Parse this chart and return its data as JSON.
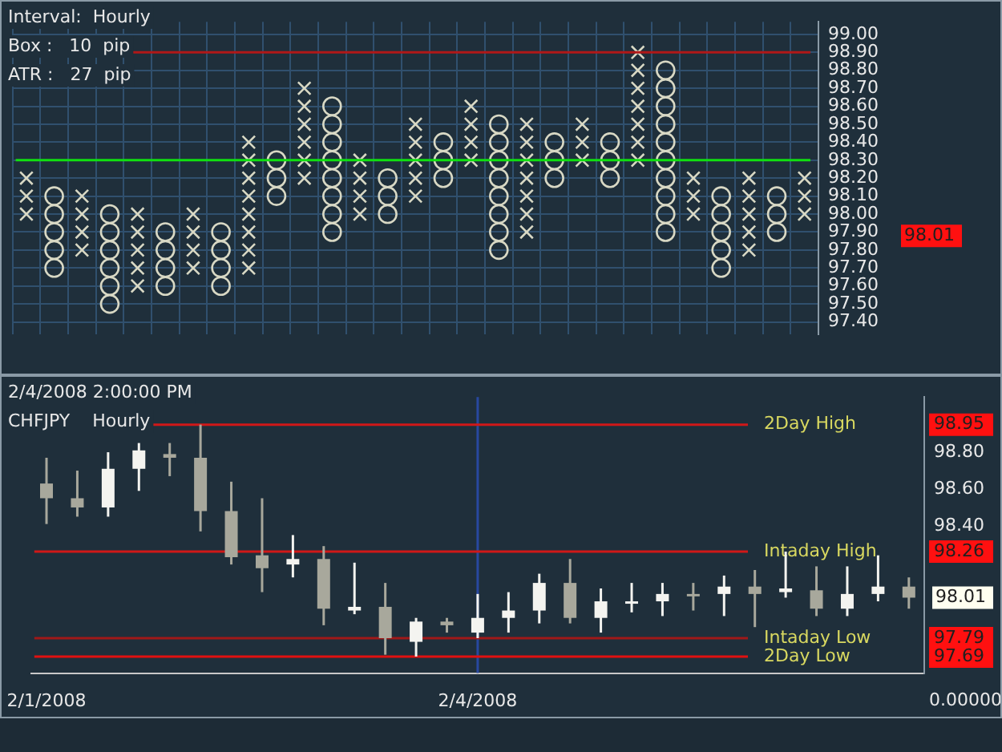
{
  "chart_data": [
    {
      "type": "scatter",
      "annotations": [
        "Interval:  Hourly",
        "Box :   10  pip",
        "ATR :   27  pip",
        {
          "text": "98.01"
        }
      ],
      "categories": [
        null,
        null,
        null,
        null,
        null,
        null,
        null,
        null,
        null,
        null,
        null,
        null,
        null,
        null,
        null,
        null,
        null,
        null,
        null,
        null,
        null,
        null,
        null,
        null,
        null,
        null,
        null,
        null,
        null
      ],
      "series": [
        {
          "type": "scatter",
          "marker": "cross",
          "color": "#d8d8c4",
          "values": [
            98.0,
            null,
            97.8,
            null,
            97.6,
            null,
            97.7,
            null,
            97.7,
            null,
            98.2,
            null,
            98.0,
            null,
            98.1,
            null,
            98.3,
            null,
            97.9,
            null,
            98.3,
            null,
            98.3,
            null,
            98.0,
            null,
            97.8,
            null,
            98.0
          ]
        },
        {
          "type": "scatter",
          "marker": "cross",
          "color": "#d8d8c4",
          "values": [
            98.1,
            null,
            97.9,
            null,
            97.7,
            null,
            97.8,
            null,
            97.8,
            null,
            98.3,
            null,
            98.1,
            null,
            98.2,
            null,
            98.4,
            null,
            98.0,
            null,
            98.4,
            null,
            98.4,
            null,
            98.1,
            null,
            97.9,
            null,
            98.1
          ]
        },
        {
          "type": "scatter",
          "marker": "cross",
          "color": "#d8d8c4",
          "values": [
            98.2,
            null,
            98.0,
            null,
            97.8,
            null,
            97.9,
            null,
            97.9,
            null,
            98.4,
            null,
            98.2,
            null,
            98.3,
            null,
            98.5,
            null,
            98.1,
            null,
            98.5,
            null,
            98.5,
            null,
            98.2,
            null,
            98.0,
            null,
            98.2
          ]
        },
        {
          "type": "scatter",
          "marker": "cross",
          "color": "#d8d8c4",
          "values": [
            null,
            null,
            98.1,
            null,
            97.9,
            null,
            98.0,
            null,
            98.0,
            null,
            98.5,
            null,
            98.3,
            null,
            98.4,
            null,
            98.6,
            null,
            98.2,
            null,
            null,
            null,
            98.6,
            null,
            null,
            null,
            98.1,
            null,
            null
          ]
        },
        {
          "type": "scatter",
          "marker": "cross",
          "color": "#d8d8c4",
          "values": [
            null,
            null,
            null,
            null,
            98.0,
            null,
            null,
            null,
            98.1,
            null,
            98.6,
            null,
            null,
            null,
            98.5,
            null,
            null,
            null,
            98.3,
            null,
            null,
            null,
            98.7,
            null,
            null,
            null,
            98.2,
            null,
            null
          ]
        },
        {
          "type": "scatter",
          "marker": "cross",
          "color": "#d8d8c4",
          "values": [
            null,
            null,
            null,
            null,
            null,
            null,
            null,
            null,
            98.2,
            null,
            98.7,
            null,
            null,
            null,
            null,
            null,
            null,
            null,
            98.4,
            null,
            null,
            null,
            98.8,
            null,
            null,
            null,
            null,
            null,
            null
          ]
        },
        {
          "type": "scatter",
          "marker": "cross",
          "color": "#d8d8c4",
          "values": [
            null,
            null,
            null,
            null,
            null,
            null,
            null,
            null,
            98.3,
            null,
            null,
            null,
            null,
            null,
            null,
            null,
            null,
            null,
            98.5,
            null,
            null,
            null,
            98.9,
            null,
            null,
            null,
            null,
            null,
            null
          ]
        },
        {
          "type": "scatter",
          "marker": "cross",
          "color": "#d8d8c4",
          "values": [
            null,
            null,
            null,
            null,
            null,
            null,
            null,
            null,
            98.4,
            null,
            null,
            null,
            null,
            null,
            null,
            null,
            null,
            null,
            null,
            null,
            null,
            null,
            null,
            null,
            null,
            null,
            null,
            null,
            null
          ]
        },
        {
          "type": "scatter",
          "marker": "circle",
          "color": "#d8d8c4",
          "values": [
            null,
            97.7,
            null,
            97.5,
            null,
            97.6,
            null,
            97.6,
            null,
            98.1,
            null,
            97.9,
            null,
            98.0,
            null,
            98.2,
            null,
            97.8,
            null,
            98.2,
            null,
            98.2,
            null,
            97.9,
            null,
            97.7,
            null,
            97.9,
            null
          ]
        },
        {
          "type": "scatter",
          "marker": "circle",
          "color": "#d8d8c4",
          "values": [
            null,
            97.8,
            null,
            97.6,
            null,
            97.7,
            null,
            97.7,
            null,
            98.2,
            null,
            98.0,
            null,
            98.1,
            null,
            98.3,
            null,
            97.9,
            null,
            98.3,
            null,
            98.3,
            null,
            98.0,
            null,
            97.8,
            null,
            98.0,
            null
          ]
        },
        {
          "type": "scatter",
          "marker": "circle",
          "color": "#d8d8c4",
          "values": [
            null,
            97.9,
            null,
            97.7,
            null,
            97.8,
            null,
            97.8,
            null,
            98.3,
            null,
            98.1,
            null,
            98.2,
            null,
            98.4,
            null,
            98.0,
            null,
            98.4,
            null,
            98.4,
            null,
            98.1,
            null,
            97.9,
            null,
            98.1,
            null
          ]
        },
        {
          "type": "scatter",
          "marker": "circle",
          "color": "#d8d8c4",
          "values": [
            null,
            98.0,
            null,
            97.8,
            null,
            97.9,
            null,
            97.9,
            null,
            null,
            null,
            98.2,
            null,
            null,
            null,
            null,
            null,
            98.1,
            null,
            null,
            null,
            null,
            null,
            98.2,
            null,
            98.0,
            null,
            null,
            null
          ]
        },
        {
          "type": "scatter",
          "marker": "circle",
          "color": "#d8d8c4",
          "values": [
            null,
            98.1,
            null,
            97.9,
            null,
            null,
            null,
            null,
            null,
            null,
            null,
            98.3,
            null,
            null,
            null,
            null,
            null,
            98.2,
            null,
            null,
            null,
            null,
            null,
            98.3,
            null,
            98.1,
            null,
            null,
            null
          ]
        },
        {
          "type": "scatter",
          "marker": "circle",
          "color": "#d8d8c4",
          "values": [
            null,
            null,
            null,
            98.0,
            null,
            null,
            null,
            null,
            null,
            null,
            null,
            98.4,
            null,
            null,
            null,
            null,
            null,
            98.3,
            null,
            null,
            null,
            null,
            null,
            98.4,
            null,
            null,
            null,
            null,
            null
          ]
        },
        {
          "type": "scatter",
          "marker": "circle",
          "color": "#d8d8c4",
          "values": [
            null,
            null,
            null,
            null,
            null,
            null,
            null,
            null,
            null,
            null,
            null,
            98.5,
            null,
            null,
            null,
            null,
            null,
            98.4,
            null,
            null,
            null,
            null,
            null,
            98.5,
            null,
            null,
            null,
            null,
            null
          ]
        },
        {
          "type": "scatter",
          "marker": "circle",
          "color": "#d8d8c4",
          "values": [
            null,
            null,
            null,
            null,
            null,
            null,
            null,
            null,
            null,
            null,
            null,
            98.6,
            null,
            null,
            null,
            null,
            null,
            98.5,
            null,
            null,
            null,
            null,
            null,
            98.6,
            null,
            null,
            null,
            null,
            null
          ]
        },
        {
          "type": "scatter",
          "marker": "circle",
          "color": "#d8d8c4",
          "values": [
            null,
            null,
            null,
            null,
            null,
            null,
            null,
            null,
            null,
            null,
            null,
            null,
            null,
            null,
            null,
            null,
            null,
            null,
            null,
            null,
            null,
            null,
            null,
            98.7,
            null,
            null,
            null,
            null,
            null
          ]
        },
        {
          "type": "scatter",
          "marker": "circle",
          "color": "#d8d8c4",
          "values": [
            null,
            null,
            null,
            null,
            null,
            null,
            null,
            null,
            null,
            null,
            null,
            null,
            null,
            null,
            null,
            null,
            null,
            null,
            null,
            null,
            null,
            null,
            null,
            98.8,
            null,
            null,
            null,
            null,
            null
          ]
        }
      ],
      "ylim": [
        97.33,
        99.07
      ],
      "yticks": [
        {
          "value": 97.4,
          "label": "97.40"
        },
        {
          "value": 97.5,
          "label": "97.50"
        },
        {
          "value": 97.6,
          "label": "97.60"
        },
        {
          "value": 97.7,
          "label": "97.70"
        },
        {
          "value": 97.8,
          "label": "97.80"
        },
        {
          "value": 97.9,
          "label": "97.90"
        },
        {
          "value": 98.0,
          "label": "98.00"
        },
        {
          "value": 98.1,
          "label": "98.10"
        },
        {
          "value": 98.2,
          "label": "98.20"
        },
        {
          "value": 98.3,
          "label": "98.30"
        },
        {
          "value": 98.4,
          "label": "98.40"
        },
        {
          "value": 98.5,
          "label": "98.50"
        },
        {
          "value": 98.6,
          "label": "98.60"
        },
        {
          "value": 98.7,
          "label": "98.70"
        },
        {
          "value": 98.8,
          "label": "98.80"
        },
        {
          "value": 98.9,
          "label": "98.90"
        },
        {
          "value": 99.0,
          "label": "99.00"
        }
      ],
      "grid": true,
      "ref_lines": [
        {
          "axis": "y",
          "value": 98.9,
          "color": "#b01818"
        },
        {
          "axis": "y",
          "value": 98.3,
          "color": "#10e010"
        }
      ]
    },
    {
      "type": "candlestick",
      "annotations": [
        "2/4/2008 2:00:00 PM",
        "CHFJPY    Hourly",
        {
          "text": "98.01"
        },
        {
          "text": "0.00000"
        }
      ],
      "categories": [
        "2/1/2008",
        null,
        null,
        null,
        null,
        null,
        null,
        null,
        null,
        null,
        null,
        null,
        null,
        null,
        "2/4/2008",
        null,
        null,
        null,
        null,
        null,
        null,
        null,
        null,
        null,
        null,
        null,
        null,
        null,
        null
      ],
      "ohlc": [
        [
          98.63,
          98.77,
          98.41,
          98.55
        ],
        [
          98.55,
          98.7,
          98.45,
          98.5
        ],
        [
          98.5,
          98.8,
          98.45,
          98.71
        ],
        [
          98.71,
          98.85,
          98.59,
          98.81
        ],
        [
          98.79,
          98.85,
          98.67,
          98.77
        ],
        [
          98.77,
          98.95,
          98.37,
          98.48
        ],
        [
          98.48,
          98.64,
          98.19,
          98.23
        ],
        [
          98.24,
          98.55,
          98.04,
          98.17
        ],
        [
          98.19,
          98.35,
          98.12,
          98.22
        ],
        [
          98.22,
          98.29,
          97.86,
          97.95
        ],
        [
          97.94,
          98.2,
          97.92,
          97.96
        ],
        [
          97.96,
          98.09,
          97.7,
          97.79
        ],
        [
          97.77,
          97.9,
          97.69,
          97.88
        ],
        [
          97.88,
          97.9,
          97.82,
          97.86
        ],
        [
          97.82,
          98.03,
          97.79,
          97.9
        ],
        [
          97.9,
          98.04,
          97.82,
          97.94
        ],
        [
          97.94,
          98.14,
          97.87,
          98.09
        ],
        [
          98.09,
          98.22,
          97.87,
          97.9
        ],
        [
          97.9,
          98.06,
          97.82,
          97.99
        ],
        [
          97.99,
          98.09,
          97.93,
          97.99
        ],
        [
          97.99,
          98.09,
          97.91,
          98.03
        ],
        [
          98.03,
          98.09,
          97.94,
          98.02
        ],
        [
          98.03,
          98.13,
          97.91,
          98.07
        ],
        [
          98.07,
          98.16,
          97.85,
          98.03
        ],
        [
          98.04,
          98.26,
          98.01,
          98.06
        ],
        [
          98.05,
          98.18,
          97.91,
          97.95
        ],
        [
          97.95,
          98.18,
          97.91,
          98.03
        ],
        [
          98.03,
          98.24,
          97.99,
          98.07
        ],
        [
          98.07,
          98.12,
          97.95,
          98.01
        ]
      ],
      "colors": [
        "#a8a89c",
        "#a8a89c",
        "#f4f4f0",
        "#f4f4f0",
        "#a8a89c",
        "#a8a89c",
        "#a8a89c",
        "#a8a89c",
        "#f4f4f0",
        "#a8a89c",
        "#f4f4f0",
        "#a8a89c",
        "#f4f4f0",
        "#a8a89c",
        "#f4f4f0",
        "#f4f4f0",
        "#f4f4f0",
        "#a8a89c",
        "#f4f4f0",
        "#f4f4f0",
        "#f4f4f0",
        "#a8a89c",
        "#f4f4f0",
        "#a8a89c",
        "#f4f4f0",
        "#a8a89c",
        "#f4f4f0",
        "#f4f4f0",
        "#a8a89c"
      ],
      "ylim": [
        97.6,
        99.1
      ],
      "yticks": [
        {
          "value": 97.69,
          "label": "97.69"
        },
        {
          "value": 97.79,
          "label": "97.79"
        },
        {
          "value": 98.26,
          "label": "98.26"
        },
        {
          "value": 98.4,
          "label": "98.40"
        },
        {
          "value": 98.6,
          "label": "98.60"
        },
        {
          "value": 98.8,
          "label": "98.80"
        },
        {
          "value": 98.95,
          "label": "98.95"
        }
      ],
      "ref_lines": [
        {
          "axis": "y",
          "value": 98.95,
          "label": "2Day High",
          "color": "#d01818"
        },
        {
          "axis": "y",
          "value": 98.26,
          "label": "Intaday High",
          "color": "#d01818"
        },
        {
          "axis": "y",
          "value": 97.79,
          "label": "Intaday Low",
          "color": "#a01818"
        },
        {
          "axis": "y",
          "value": 97.69,
          "label": "2Day Low",
          "color": "#e01010"
        },
        {
          "axis": "x",
          "value": "2/4/2008",
          "color": "#2848a0"
        }
      ]
    }
  ]
}
